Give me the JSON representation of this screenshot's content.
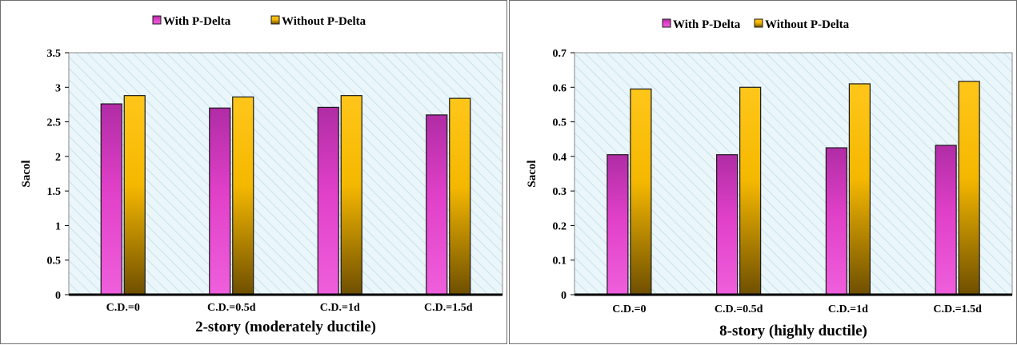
{
  "chart_data": [
    {
      "type": "bar",
      "title": "2-story (moderately ductile)",
      "ylabel": "Sacol",
      "xlabel": "",
      "categories": [
        "C.D.=0",
        "C.D.=0.5d",
        "C.D.=1d",
        "C.D.=1.5d"
      ],
      "series": [
        {
          "name": "With P-Delta",
          "values": [
            2.76,
            2.7,
            2.71,
            2.6
          ]
        },
        {
          "name": "Without P-Delta",
          "values": [
            2.88,
            2.86,
            2.88,
            2.84
          ]
        }
      ],
      "ylim": [
        0,
        3.5
      ],
      "yticks": [
        "0",
        "0.5",
        "1",
        "1.5",
        "2",
        "2.5",
        "3",
        "3.5"
      ],
      "grid": false,
      "legend": "top",
      "colors": {
        "with": "#e040c8",
        "without": "#f5b800"
      }
    },
    {
      "type": "bar",
      "title": "8-story (highly ductile)",
      "ylabel": "Sacol",
      "xlabel": "",
      "categories": [
        "C.D.=0",
        "C.D.=0.5d",
        "C.D.=1d",
        "C.D.=1.5d"
      ],
      "series": [
        {
          "name": "With P-Delta",
          "values": [
            0.405,
            0.405,
            0.425,
            0.432
          ]
        },
        {
          "name": "Without P-Delta",
          "values": [
            0.595,
            0.6,
            0.61,
            0.617
          ]
        }
      ],
      "ylim": [
        0,
        0.7
      ],
      "yticks": [
        "0",
        "0.1",
        "0.2",
        "0.3",
        "0.4",
        "0.5",
        "0.6",
        "0.7"
      ],
      "grid": false,
      "legend": "top",
      "colors": {
        "with": "#e040c8",
        "without": "#f5b800"
      }
    }
  ]
}
